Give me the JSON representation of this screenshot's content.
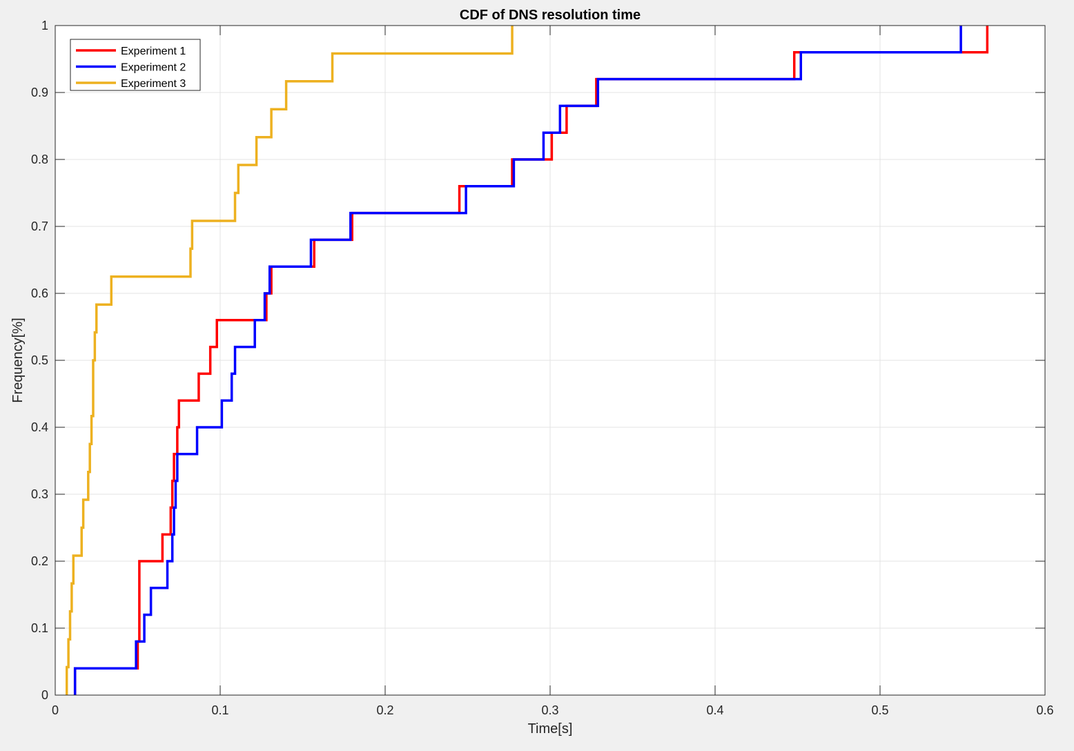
{
  "chart_data": {
    "type": "line",
    "title": "CDF of DNS resolution time",
    "xlabel": "Time[s]",
    "ylabel": "Frequency[%]",
    "xlim": [
      0,
      0.6
    ],
    "ylim": [
      0,
      1
    ],
    "xticks": [
      0,
      0.1,
      0.2,
      0.3,
      0.4,
      0.5,
      0.6
    ],
    "yticks": [
      0,
      0.1,
      0.2,
      0.3,
      0.4,
      0.5,
      0.6,
      0.7,
      0.8,
      0.9,
      1
    ],
    "xtick_labels": [
      "0",
      "0.1",
      "0.2",
      "0.3",
      "0.4",
      "0.5",
      "0.6"
    ],
    "ytick_labels": [
      "0",
      "0.1",
      "0.2",
      "0.3",
      "0.4",
      "0.5",
      "0.6",
      "0.7",
      "0.8",
      "0.9",
      "1"
    ],
    "grid": true,
    "legend_position": "top-left",
    "step": true,
    "series": [
      {
        "name": "Experiment 1",
        "color": "#ff0000",
        "x": [
          0.012,
          0.05,
          0.051,
          0.065,
          0.07,
          0.071,
          0.072,
          0.074,
          0.075,
          0.087,
          0.094,
          0.098,
          0.128,
          0.129,
          0.131,
          0.157,
          0.18,
          0.245,
          0.277,
          0.301,
          0.31,
          0.328,
          0.448,
          0.565
        ],
        "y": [
          0.04,
          0.08,
          0.2,
          0.24,
          0.28,
          0.32,
          0.36,
          0.4,
          0.44,
          0.48,
          0.52,
          0.56,
          0.6,
          0.6,
          0.64,
          0.68,
          0.72,
          0.76,
          0.8,
          0.84,
          0.88,
          0.92,
          0.96,
          1.0
        ]
      },
      {
        "name": "Experiment 2",
        "color": "#0000ff",
        "x": [
          0.012,
          0.049,
          0.054,
          0.058,
          0.068,
          0.071,
          0.072,
          0.073,
          0.074,
          0.086,
          0.101,
          0.107,
          0.109,
          0.121,
          0.127,
          0.13,
          0.155,
          0.179,
          0.249,
          0.278,
          0.296,
          0.306,
          0.329,
          0.452,
          0.549
        ],
        "y": [
          0.04,
          0.08,
          0.12,
          0.16,
          0.2,
          0.24,
          0.28,
          0.32,
          0.36,
          0.4,
          0.44,
          0.48,
          0.52,
          0.56,
          0.6,
          0.64,
          0.68,
          0.72,
          0.76,
          0.8,
          0.84,
          0.88,
          0.92,
          0.96,
          1.0
        ]
      },
      {
        "name": "Experiment 3",
        "color": "#edb120",
        "x": [
          0.007,
          0.008,
          0.009,
          0.01,
          0.011,
          0.016,
          0.017,
          0.02,
          0.021,
          0.022,
          0.023,
          0.024,
          0.025,
          0.034,
          0.082,
          0.083,
          0.109,
          0.111,
          0.122,
          0.131,
          0.14,
          0.168,
          0.277
        ],
        "y": [
          0.0417,
          0.0833,
          0.125,
          0.1667,
          0.2083,
          0.25,
          0.2917,
          0.3333,
          0.375,
          0.4167,
          0.5,
          0.5417,
          0.5833,
          0.625,
          0.6667,
          0.7083,
          0.75,
          0.7917,
          0.8333,
          0.875,
          0.9167,
          0.9583,
          1.0
        ]
      }
    ]
  }
}
